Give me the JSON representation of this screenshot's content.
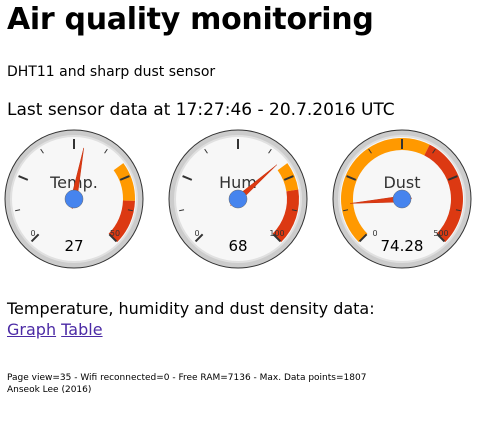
{
  "page": {
    "title": "Air quality monitoring",
    "subtitle": "DHT11 and sharp dust sensor",
    "last_sensor_data": "Last sensor data at 17:27:46 - 20.7.2016 UTC"
  },
  "gauges": [
    {
      "label": "Temp.",
      "value": 27,
      "value_text": "27",
      "min": 0,
      "max": 50,
      "min_text": "0",
      "max_text": "50",
      "yellow_from": 35,
      "yellow_to": 42,
      "red_from": 42,
      "red_to": 50
    },
    {
      "label": "Hum",
      "value": 68,
      "value_text": "68",
      "min": 0,
      "max": 100,
      "min_text": "0",
      "max_text": "100",
      "yellow_from": 70,
      "yellow_to": 80,
      "red_from": 80,
      "red_to": 100
    },
    {
      "label": "Dust",
      "value": 74.28,
      "value_text": "74.28",
      "min": 0,
      "max": 500,
      "min_text": "0",
      "max_text": "500",
      "yellow_from": 0,
      "yellow_to": 300,
      "red_from": 300,
      "red_to": 500
    }
  ],
  "colors": {
    "yellow": "#ff9900",
    "red": "#dc3912",
    "needle": "#dc3912",
    "knob": "#4684ee"
  },
  "data_section": {
    "heading": "Temperature, humidity and dust density data:",
    "graph_link": "Graph",
    "table_link": "Table"
  },
  "footer": {
    "stats": "Page view=35 - Wifi reconnected=0 - Free RAM=7136 - Max. Data points=1807",
    "author": "Anseok Lee (2016)"
  }
}
